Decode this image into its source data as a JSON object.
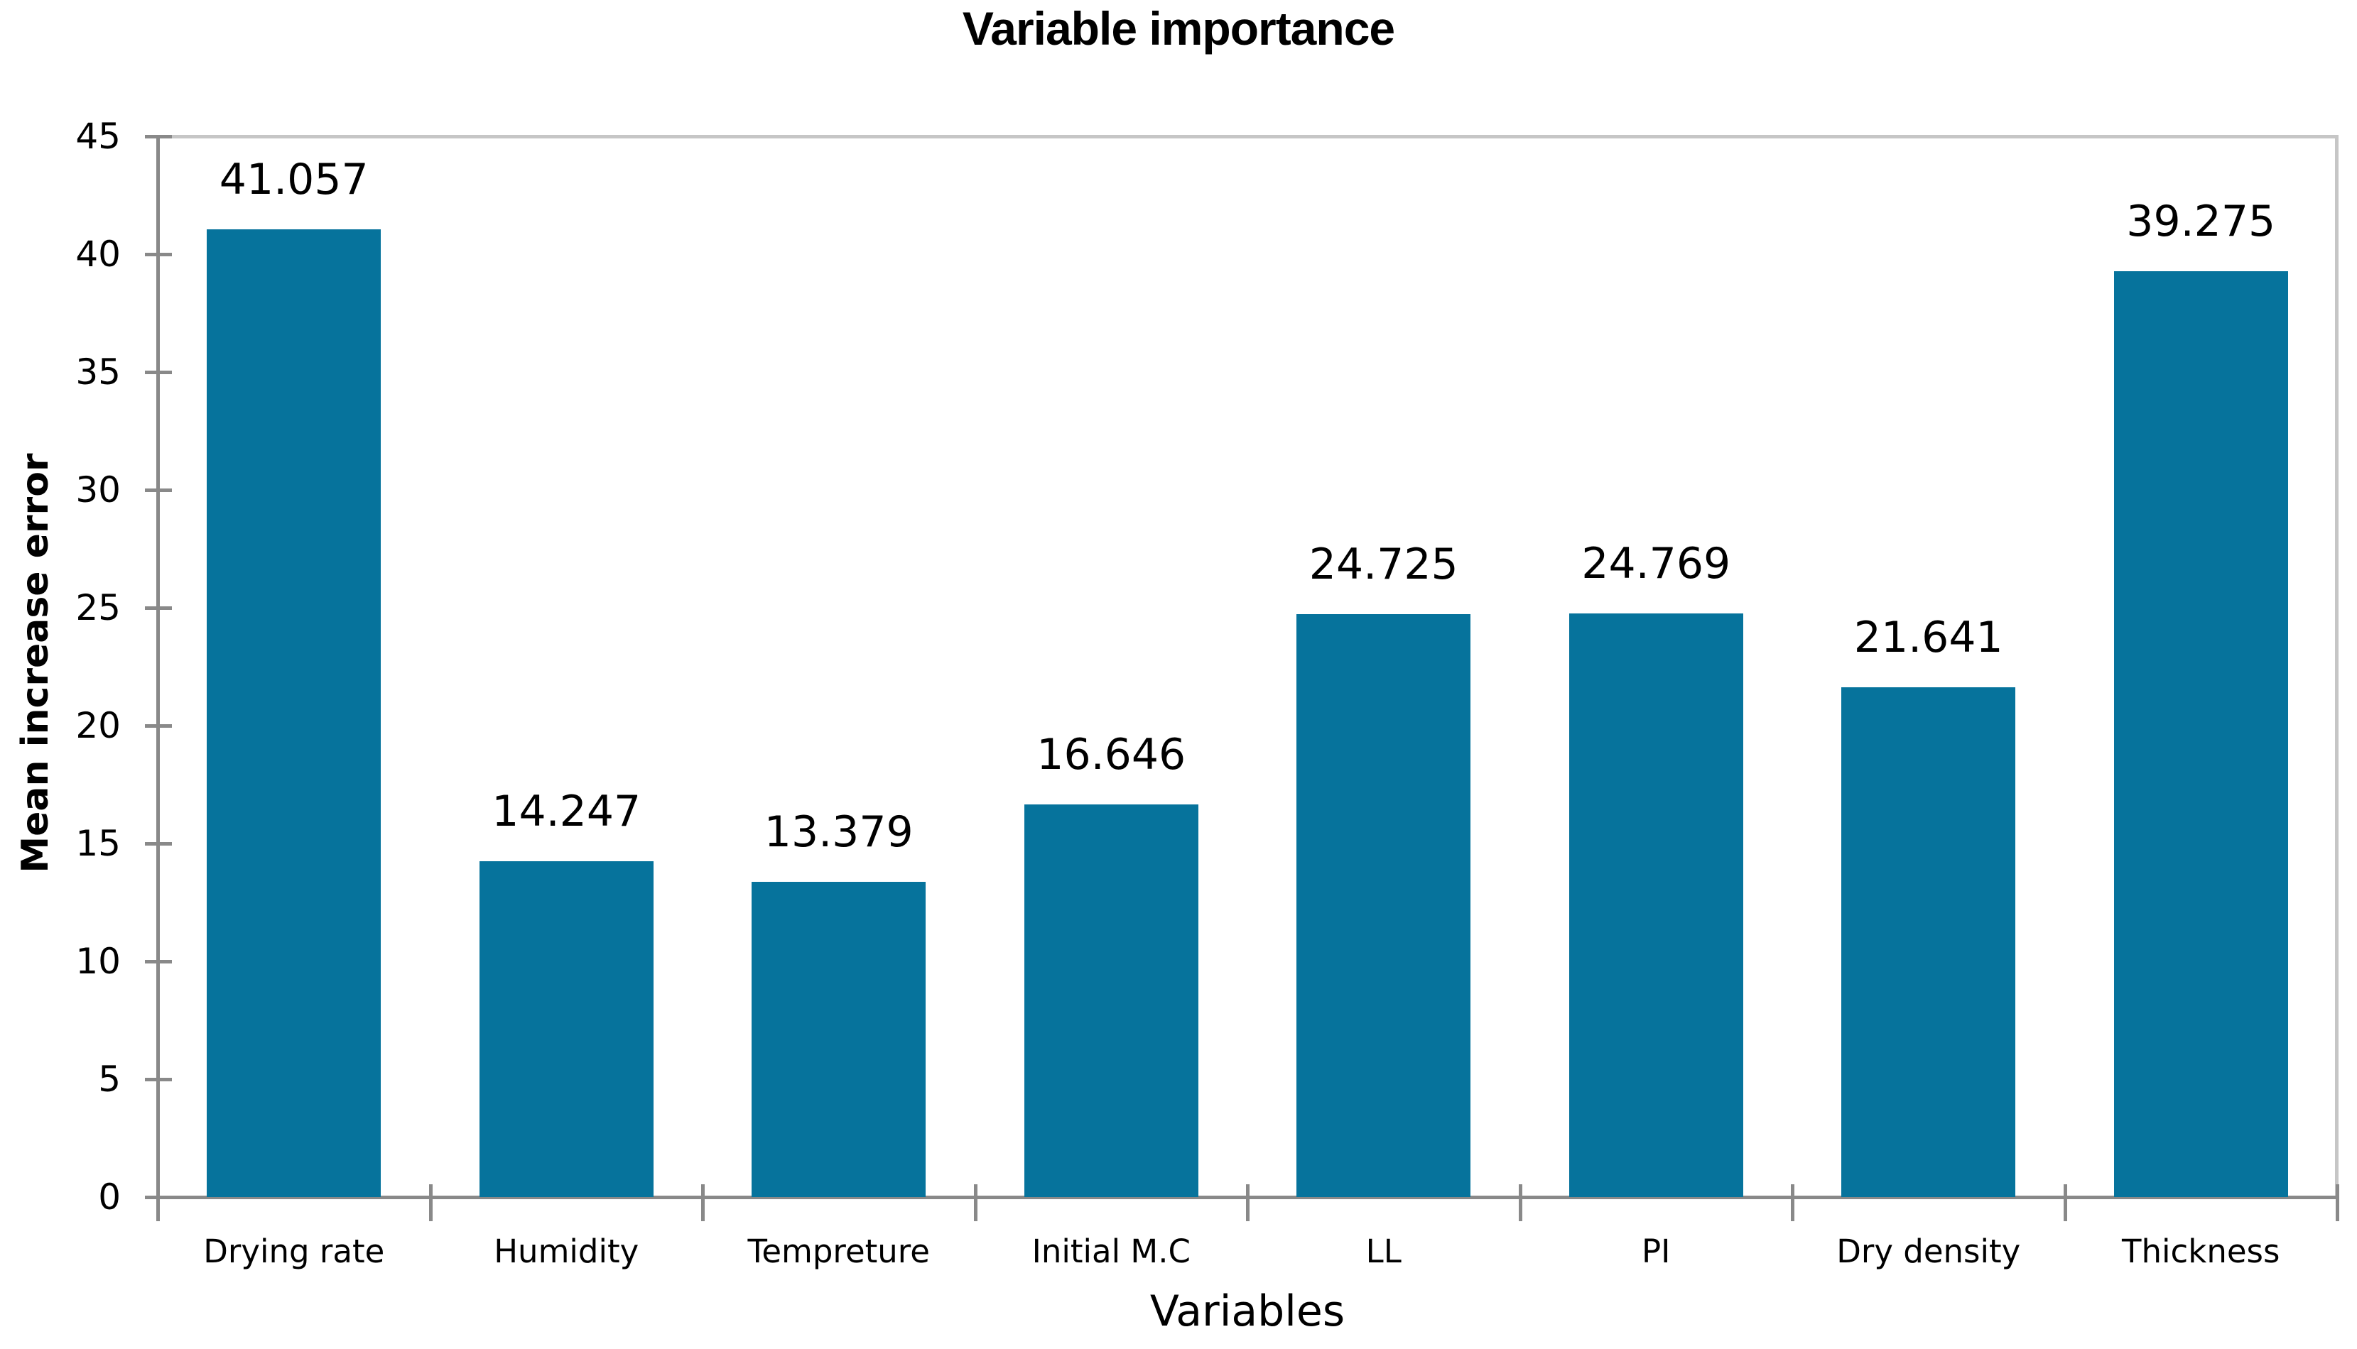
{
  "chart_data": {
    "type": "bar",
    "title": "Variable importance",
    "xlabel": "Variables",
    "ylabel": "Mean increase error",
    "categories": [
      "Drying rate",
      "Humidity",
      "Tempreture",
      "Initial M.C",
      "LL",
      "PI",
      "Dry density",
      "Thickness"
    ],
    "values": [
      41.057,
      14.247,
      13.379,
      16.646,
      24.725,
      24.769,
      21.641,
      39.275
    ],
    "value_labels": [
      "41.057",
      "14.247",
      "13.379",
      "16.646",
      "24.725",
      "24.769",
      "21.641",
      "39.275"
    ],
    "ylim": [
      0,
      45
    ],
    "yticks": [
      0,
      5,
      10,
      15,
      20,
      25,
      30,
      35,
      40,
      45
    ],
    "legend_position": "none",
    "gridlines": "top boundary line only",
    "bar_color": "#06739c",
    "axis_color": "#898989",
    "gridline_color": "#c6c6c6",
    "text_color": "#000000",
    "background_color": "#ffffff"
  }
}
